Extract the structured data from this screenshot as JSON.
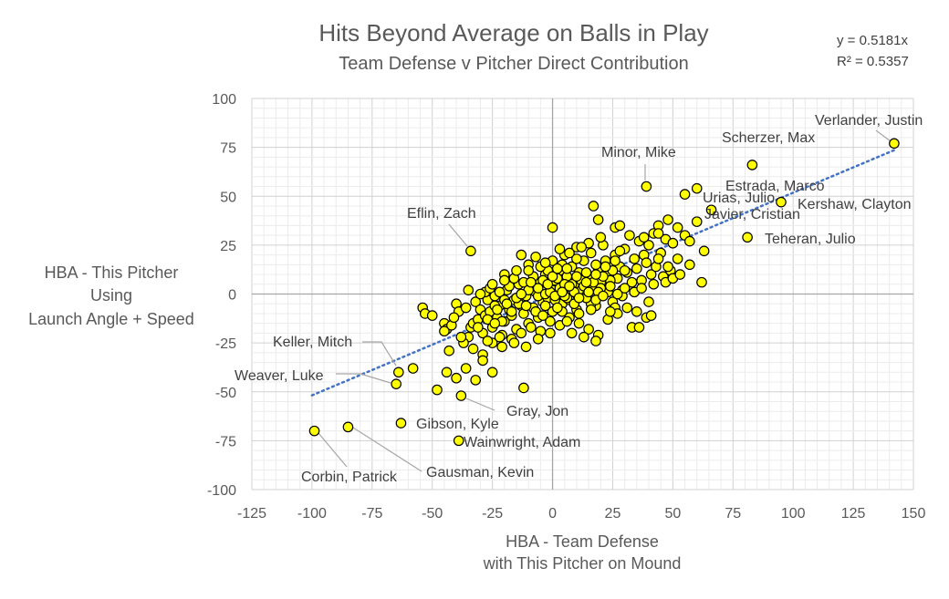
{
  "chart_data": {
    "type": "scatter",
    "title": "Hits Beyond Average on Balls in Play",
    "subtitle": "Team Defense v Pitcher Direct Contribution",
    "xlabel": [
      "HBA - Team Defense",
      "with This Pitcher on Mound"
    ],
    "ylabel": [
      "HBA - This Pitcher",
      "Using",
      "Launch Angle + Speed"
    ],
    "xlim": [
      -125,
      150
    ],
    "ylim": [
      -100,
      100
    ],
    "x_ticks": [
      "-125",
      "-100",
      "-75",
      "-50",
      "-25",
      "0",
      "25",
      "50",
      "75",
      "100",
      "125",
      "150"
    ],
    "y_ticks": [
      "100",
      "75",
      "50",
      "25",
      "0",
      "-25",
      "-50",
      "-75",
      "-100"
    ],
    "trendline": {
      "slope": 0.5181,
      "x_range": [
        -100,
        142
      ],
      "equation": "y = 0.5181x",
      "r_squared": "R² = 0.5357",
      "style": "dotted",
      "color": "#4472c4"
    },
    "grid": true,
    "marker_color": "#ffff00",
    "marker_edge_color": "#000000",
    "labeled_points": [
      {
        "name": "Verlander, Justin",
        "x": 142,
        "y": 77
      },
      {
        "name": "Scherzer, Max",
        "x": 83,
        "y": 66
      },
      {
        "name": "Minor, Mike",
        "x": 39,
        "y": 55
      },
      {
        "name": "Estrada, Marco",
        "x": 60,
        "y": 54
      },
      {
        "name": "Urias, Julio",
        "x": 55,
        "y": 51
      },
      {
        "name": "Kershaw, Clayton",
        "x": 95,
        "y": 47
      },
      {
        "name": "Javier, Cristian",
        "x": 66,
        "y": 43
      },
      {
        "name": "Teheran, Julio",
        "x": 81,
        "y": 29
      },
      {
        "name": "Eflin, Zach",
        "x": -34,
        "y": 22
      },
      {
        "name": "Keller, Mitch",
        "x": -64,
        "y": -40
      },
      {
        "name": "Weaver, Luke",
        "x": -65,
        "y": -46
      },
      {
        "name": "Gray, Jon",
        "x": -38,
        "y": -52
      },
      {
        "name": "Gibson, Kyle",
        "x": -63,
        "y": -66
      },
      {
        "name": "Wainwright, Adam",
        "x": -39,
        "y": -75
      },
      {
        "name": "Corbin, Patrick",
        "x": -99,
        "y": -70
      },
      {
        "name": "Gausman, Kevin",
        "x": -85,
        "y": -68
      }
    ],
    "points": [
      [
        -54,
        -7
      ],
      [
        -53,
        -10
      ],
      [
        -45,
        -15
      ],
      [
        -44,
        -18
      ],
      [
        -42,
        -16
      ],
      [
        -40,
        -5
      ],
      [
        -39,
        -9
      ],
      [
        -36,
        -7
      ],
      [
        -35,
        2
      ],
      [
        -35,
        -22
      ],
      [
        -34,
        -17
      ],
      [
        -33,
        -15
      ],
      [
        -32,
        -4
      ],
      [
        -31,
        -13
      ],
      [
        -30,
        -8
      ],
      [
        -29,
        -20
      ],
      [
        -28,
        -11
      ],
      [
        -27,
        -3
      ],
      [
        -26,
        -9
      ],
      [
        -25,
        -17
      ],
      [
        -24,
        -1
      ],
      [
        -23,
        -12
      ],
      [
        -22,
        -6
      ],
      [
        -21,
        -21
      ],
      [
        -20,
        -14
      ],
      [
        -19,
        2
      ],
      [
        -18,
        -8
      ],
      [
        -17,
        -11
      ],
      [
        -16,
        -3
      ],
      [
        -15,
        -18
      ],
      [
        -14,
        5
      ],
      [
        -13,
        -6
      ],
      [
        -12,
        -10
      ],
      [
        -11,
        -1
      ],
      [
        -10,
        -15
      ],
      [
        -9,
        3
      ],
      [
        -8,
        -7
      ],
      [
        -7,
        1
      ],
      [
        -6,
        -12
      ],
      [
        -5,
        6
      ],
      [
        -4,
        -4
      ],
      [
        -3,
        10
      ],
      [
        -2,
        -2
      ],
      [
        -1,
        4
      ],
      [
        0,
        -9
      ],
      [
        1,
        7
      ],
      [
        2,
        0
      ],
      [
        3,
        12
      ],
      [
        4,
        -5
      ],
      [
        5,
        3
      ],
      [
        6,
        9
      ],
      [
        7,
        -3
      ],
      [
        8,
        14
      ],
      [
        9,
        5
      ],
      [
        10,
        -8
      ],
      [
        11,
        11
      ],
      [
        12,
        2
      ],
      [
        13,
        17
      ],
      [
        14,
        -1
      ],
      [
        15,
        8
      ],
      [
        16,
        21
      ],
      [
        17,
        4
      ],
      [
        18,
        -6
      ],
      [
        19,
        13
      ],
      [
        20,
        6
      ],
      [
        21,
        25
      ],
      [
        22,
        10
      ],
      [
        23,
        1
      ],
      [
        24,
        16
      ],
      [
        25,
        -4
      ],
      [
        26,
        20
      ],
      [
        27,
        8
      ],
      [
        28,
        14
      ],
      [
        29,
        2
      ],
      [
        30,
        23
      ],
      [
        31,
        11
      ],
      [
        32,
        30
      ],
      [
        33,
        6
      ],
      [
        34,
        18
      ],
      [
        35,
        13
      ],
      [
        36,
        27
      ],
      [
        37,
        7
      ],
      [
        38,
        20
      ],
      [
        39,
        16
      ],
      [
        40,
        25
      ],
      [
        41,
        10
      ],
      [
        42,
        31
      ],
      [
        43,
        14
      ],
      [
        44,
        35
      ],
      [
        45,
        21
      ],
      [
        46,
        9
      ],
      [
        47,
        28
      ],
      [
        48,
        38
      ],
      [
        49,
        12
      ],
      [
        50,
        26
      ],
      [
        52,
        34
      ],
      [
        55,
        30
      ],
      [
        57,
        27
      ],
      [
        60,
        37
      ],
      [
        63,
        22
      ],
      [
        -28,
        1
      ],
      [
        -26,
        3
      ],
      [
        -24,
        -6
      ],
      [
        -22,
        1
      ],
      [
        -20,
        -3
      ],
      [
        -18,
        4
      ],
      [
        -16,
        8
      ],
      [
        -14,
        -5
      ],
      [
        -12,
        6
      ],
      [
        -10,
        2
      ],
      [
        -8,
        9
      ],
      [
        -6,
        -1
      ],
      [
        -4,
        7
      ],
      [
        -2,
        12
      ],
      [
        0,
        2
      ],
      [
        2,
        8
      ],
      [
        4,
        15
      ],
      [
        6,
        -2
      ],
      [
        8,
        5
      ],
      [
        10,
        18
      ],
      [
        12,
        7
      ],
      [
        14,
        11
      ],
      [
        16,
        -5
      ],
      [
        18,
        15
      ],
      [
        20,
        3
      ],
      [
        22,
        17
      ],
      [
        24,
        7
      ],
      [
        26,
        -7
      ],
      [
        28,
        22
      ],
      [
        30,
        12
      ],
      [
        -30,
        0
      ],
      [
        -25,
        5
      ],
      [
        -20,
        10
      ],
      [
        -15,
        12
      ],
      [
        -10,
        15
      ],
      [
        -5,
        14
      ],
      [
        0,
        17
      ],
      [
        5,
        20
      ],
      [
        10,
        24
      ],
      [
        15,
        26
      ],
      [
        20,
        29
      ],
      [
        -37,
        -25
      ],
      [
        -33,
        -28
      ],
      [
        -29,
        -31
      ],
      [
        -25,
        -25
      ],
      [
        -21,
        -27
      ],
      [
        -17,
        -23
      ],
      [
        -13,
        -20
      ],
      [
        -9,
        -17
      ],
      [
        -5,
        -19
      ],
      [
        -1,
        -14
      ],
      [
        3,
        -16
      ],
      [
        7,
        -12
      ],
      [
        11,
        -15
      ],
      [
        15,
        -18
      ],
      [
        19,
        -21
      ],
      [
        23,
        -13
      ],
      [
        27,
        -10
      ],
      [
        31,
        -7
      ],
      [
        35,
        -9
      ],
      [
        39,
        -12
      ],
      [
        -44,
        -40
      ],
      [
        -40,
        -43
      ],
      [
        -36,
        -38
      ],
      [
        -32,
        -44
      ],
      [
        -29,
        -34
      ],
      [
        -25,
        -40
      ],
      [
        -12,
        -48
      ],
      [
        -48,
        -49
      ],
      [
        -58,
        -38
      ],
      [
        -43,
        -29
      ],
      [
        0,
        34
      ],
      [
        17,
        45
      ],
      [
        19,
        38
      ],
      [
        26,
        34
      ],
      [
        28,
        35
      ],
      [
        38,
        29
      ],
      [
        44,
        31
      ],
      [
        52,
        18
      ],
      [
        57,
        15
      ],
      [
        62,
        6
      ],
      [
        47,
        6
      ],
      [
        50,
        8
      ],
      [
        40,
        -4
      ],
      [
        33,
        -17
      ],
      [
        36,
        -17
      ],
      [
        41,
        -11
      ],
      [
        -13,
        20
      ],
      [
        -10,
        12
      ],
      [
        -7,
        19
      ],
      [
        -3,
        16
      ],
      [
        3,
        23
      ],
      [
        7,
        21
      ],
      [
        12,
        24
      ],
      [
        -11,
        -27
      ],
      [
        -16,
        -25
      ],
      [
        -22,
        -22
      ],
      [
        -27,
        -24
      ],
      [
        8,
        -20
      ],
      [
        13,
        -22
      ],
      [
        18,
        -24
      ],
      [
        -1,
        -20
      ],
      [
        -6,
        -23
      ],
      [
        4,
        -9
      ],
      [
        9,
        -5
      ],
      [
        14,
        -2
      ],
      [
        19,
        1
      ],
      [
        24,
        4
      ],
      [
        29,
        -1
      ],
      [
        34,
        1
      ],
      [
        -45,
        -19
      ],
      [
        -50,
        -11
      ],
      [
        -41,
        -12
      ],
      [
        -38,
        -22
      ],
      [
        44,
        18
      ],
      [
        48,
        14
      ],
      [
        53,
        10
      ],
      [
        37,
        3
      ],
      [
        42,
        5
      ],
      [
        -3,
        -6
      ],
      [
        1,
        -3
      ],
      [
        5,
        -1
      ],
      [
        9,
        1
      ],
      [
        13,
        4
      ],
      [
        17,
        6
      ],
      [
        21,
        9
      ],
      [
        25,
        12
      ],
      [
        -7,
        -9
      ],
      [
        -11,
        -6
      ],
      [
        -15,
        -2
      ],
      [
        -19,
        -5
      ],
      [
        -23,
        -8
      ],
      [
        -27,
        -13
      ],
      [
        -31,
        -17
      ],
      [
        6,
        13
      ],
      [
        10,
        9
      ],
      [
        14,
        6
      ],
      [
        18,
        10
      ],
      [
        22,
        14
      ],
      [
        26,
        17
      ],
      [
        -6,
        3
      ],
      [
        -9,
        6
      ],
      [
        -13,
        0
      ],
      [
        -17,
        -9
      ],
      [
        -21,
        -14
      ],
      [
        -3,
        0
      ],
      [
        -1,
        1
      ],
      [
        1,
        -1
      ],
      [
        3,
        3
      ],
      [
        5,
        5
      ],
      [
        2,
        -7
      ],
      [
        -4,
        -11
      ],
      [
        6,
        -14
      ],
      [
        11,
        -10
      ],
      [
        16,
        -8
      ],
      [
        -20,
        7
      ],
      [
        -24,
        -15
      ],
      [
        -2,
        5
      ],
      [
        0,
        9
      ],
      [
        2,
        13
      ],
      [
        4,
        1
      ],
      [
        7,
        4
      ],
      [
        11,
        -2
      ],
      [
        15,
        1
      ],
      [
        18,
        -3
      ],
      [
        21,
        -1
      ],
      [
        24,
        -9
      ],
      [
        27,
        0
      ],
      [
        30,
        3
      ]
    ]
  }
}
